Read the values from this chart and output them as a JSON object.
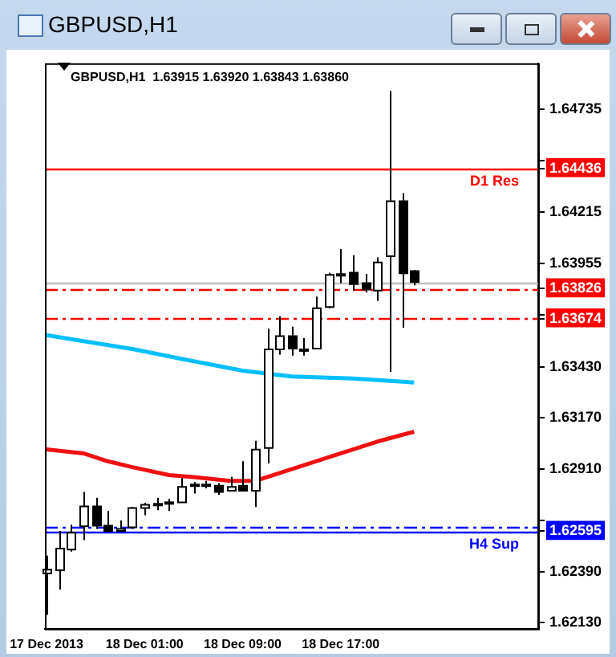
{
  "chart_data": {
    "type": "candlestick",
    "title": "GBPUSD,H1",
    "subtitle": "GBPUSD,H1  1.63915 1.63920 1.63843 1.63860",
    "x": [
      "2013-12-17T17:00",
      "2013-12-17T18:00",
      "2013-12-17T19:00",
      "2013-12-17T20:00",
      "2013-12-17T21:00",
      "2013-12-17T22:00",
      "2013-12-17T23:00",
      "2013-12-18T00:00",
      "2013-12-18T01:00",
      "2013-12-18T02:00",
      "2013-12-18T03:00",
      "2013-12-18T04:00",
      "2013-12-18T05:00",
      "2013-12-18T06:00",
      "2013-12-18T07:00",
      "2013-12-18T08:00",
      "2013-12-18T09:00",
      "2013-12-18T10:00",
      "2013-12-18T11:00",
      "2013-12-18T12:00",
      "2013-12-18T13:00",
      "2013-12-18T14:00",
      "2013-12-18T15:00",
      "2013-12-18T16:00",
      "2013-12-18T17:00",
      "2013-12-18T18:00",
      "2013-12-18T19:00",
      "2013-12-18T20:00",
      "2013-12-18T21:00",
      "2013-12-18T22:00",
      "2013-12-18T23:00"
    ],
    "ohlc": [
      [
        1.6238,
        1.62471,
        1.62171,
        1.624
      ],
      [
        1.62397,
        1.62597,
        1.62299,
        1.62507
      ],
      [
        1.62502,
        1.62628,
        1.62492,
        1.62587
      ],
      [
        1.6262,
        1.62794,
        1.6255,
        1.62721
      ],
      [
        1.62721,
        1.62765,
        1.62607,
        1.62623
      ],
      [
        1.62623,
        1.62697,
        1.62591,
        1.62597
      ],
      [
        1.62597,
        1.6265,
        1.62591,
        1.62607
      ],
      [
        1.62615,
        1.62718,
        1.62607,
        1.62713
      ],
      [
        1.62713,
        1.62739,
        1.62676,
        1.62729
      ],
      [
        1.62731,
        1.62765,
        1.62702,
        1.62734
      ],
      [
        1.62739,
        1.6276,
        1.62697,
        1.62742
      ],
      [
        1.62741,
        1.62865,
        1.62739,
        1.6282
      ],
      [
        1.62829,
        1.62844,
        1.62786,
        1.62832
      ],
      [
        1.62832,
        1.6285,
        1.62813,
        1.62829
      ],
      [
        1.62826,
        1.62839,
        1.6278,
        1.62794
      ],
      [
        1.628,
        1.62871,
        1.628,
        1.6282
      ],
      [
        1.62826,
        1.6295,
        1.628,
        1.628
      ],
      [
        1.628,
        1.63054,
        1.62718,
        1.63009
      ],
      [
        1.63017,
        1.63623,
        1.62939,
        1.63518
      ],
      [
        1.63518,
        1.63686,
        1.63491,
        1.63585
      ],
      [
        1.63585,
        1.63633,
        1.63486,
        1.63522
      ],
      [
        1.63518,
        1.63575,
        1.63486,
        1.63512
      ],
      [
        1.63522,
        1.63786,
        1.63518,
        1.63727
      ],
      [
        1.63733,
        1.63907,
        1.63727,
        1.63896
      ],
      [
        1.63896,
        1.64027,
        1.63854,
        1.639
      ],
      [
        1.63907,
        1.63996,
        1.63817,
        1.63849
      ],
      [
        1.63854,
        1.63901,
        1.63806,
        1.63822
      ],
      [
        1.63817,
        1.63985,
        1.63764,
        1.63959
      ],
      [
        1.63991,
        1.6483,
        1.63404,
        1.6427
      ],
      [
        1.6427,
        1.64311,
        1.63628,
        1.63904
      ],
      [
        1.63915,
        1.6392,
        1.63843,
        1.6386
      ]
    ],
    "series": [
      {
        "type": "line",
        "color": "#00bfff",
        "x": [
          "2013-12-17T17:00",
          "2013-12-17T20:00",
          "2013-12-18T00:00",
          "2013-12-18T04:00",
          "2013-12-18T09:00",
          "2013-12-18T13:00",
          "2013-12-18T18:00",
          "2013-12-18T23:00"
        ],
        "values": [
          1.6359,
          1.6356,
          1.6352,
          1.6347,
          1.6341,
          1.6338,
          1.6337,
          1.6335
        ]
      },
      {
        "type": "line",
        "color": "#ee1111",
        "x": [
          "2013-12-17T17:00",
          "2013-12-17T20:00",
          "2013-12-17T22:00",
          "2013-12-18T00:00",
          "2013-12-18T03:00",
          "2013-12-18T05:00",
          "2013-12-18T08:00",
          "2013-12-18T10:00",
          "2013-12-18T13:00",
          "2013-12-18T16:00",
          "2013-12-18T20:00",
          "2013-12-18T23:00"
        ],
        "values": [
          1.6301,
          1.6299,
          1.6295,
          1.6292,
          1.6288,
          1.6287,
          1.6285,
          1.6285,
          1.6291,
          1.6297,
          1.6305,
          1.631
        ]
      }
    ],
    "xlim": [
      "2013-12-17T16:52",
      "2013-12-19T09:07"
    ],
    "xticks": [
      {
        "value": "2013-12-17T17:00",
        "label": "17 Dec 2013"
      },
      {
        "value": "2013-12-18T01:00",
        "label": "18 Dec 01:00"
      },
      {
        "value": "2013-12-18T09:00",
        "label": "18 Dec 09:00"
      },
      {
        "value": "2013-12-18T17:00",
        "label": "18 Dec 17:00"
      }
    ],
    "ylim": [
      1.621,
      1.6497
    ],
    "yticks": [
      1.64735,
      {
        "value": 1.64475,
        "label": null
      },
      1.64436,
      1.64215,
      1.63955,
      1.63826,
      {
        "value": 1.63695,
        "label": null
      },
      1.63674,
      1.62595,
      {
        "value": 1.6343,
        "label": "1.63430"
      },
      {
        "value": 1.6317,
        "label": "1.63170"
      },
      {
        "value": 1.6291,
        "label": "1.62910"
      },
      {
        "value": 1.6265,
        "label": null
      },
      {
        "value": 1.6239,
        "label": "1.62390"
      },
      {
        "value": 1.6213,
        "label": "1.62130"
      }
    ],
    "ref_lines": [
      {
        "axis": "y",
        "value": 1.64436,
        "label": "D1 Res",
        "color": "#ff0000",
        "line_style": "solid"
      },
      {
        "axis": "y",
        "value": 1.6386,
        "label": null,
        "color": "#c0c0c0",
        "line_style": "solid"
      },
      {
        "axis": "y",
        "value": 1.63826,
        "label": null,
        "color": "#ff0000",
        "line_style": "dashed"
      },
      {
        "axis": "y",
        "value": 1.63674,
        "label": null,
        "color": "#ff0000",
        "line_style": "dashed"
      },
      {
        "axis": "y",
        "value": 1.62613,
        "label": null,
        "color": "#0000ff",
        "line_style": "dashed"
      },
      {
        "axis": "y",
        "value": 1.62595,
        "label": "H4 Sup",
        "color": "#0000ff",
        "line_style": "solid"
      }
    ],
    "grid": false,
    "legend": false
  }
}
